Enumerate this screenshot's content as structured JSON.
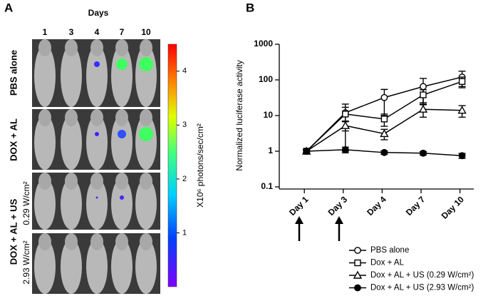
{
  "panel_a": {
    "label": "A",
    "days_title": "Days",
    "days": [
      "1",
      "3",
      "4",
      "7",
      "10"
    ],
    "rows": [
      "PBS alone",
      "DOX + AL",
      "DOX + AL + US",
      "0.29 W/cm²",
      "2.93 W/cm²"
    ],
    "colorbar": {
      "label": "X10⁶ photons/sec/cm²",
      "ticks": [
        1,
        2,
        3,
        4
      ],
      "lim": [
        0,
        4.5
      ]
    }
  },
  "chart_data": {
    "type": "line",
    "panel_label": "B",
    "y_label": "Normalized luciferase activity",
    "categories": [
      "Day 1",
      "Day 3",
      "Day 4",
      "Day 7",
      "Day 10"
    ],
    "ylim": [
      0.1,
      1000
    ],
    "yticks": [
      0.1,
      1,
      10,
      100,
      1000
    ],
    "log_y": true,
    "series": [
      {
        "name": "PBS alone",
        "color": "#000000",
        "marker": "circle-open",
        "values": [
          1,
          12,
          32,
          65,
          120
        ],
        "errors": [
          0.1,
          5,
          22,
          45,
          55
        ]
      },
      {
        "name": "Dox + AL",
        "color": "#000000",
        "marker": "square-open",
        "values": [
          1,
          11,
          8,
          38,
          90
        ],
        "errors": [
          0.1,
          10,
          3,
          15,
          30
        ]
      },
      {
        "name": "Dox + AL + US (0.29 W/cm²)",
        "color": "#000000",
        "marker": "triangle-open",
        "values": [
          1,
          5.2,
          3.1,
          15,
          14
        ],
        "errors": [
          0.1,
          1.5,
          1,
          6,
          5
        ]
      },
      {
        "name": "Dox + AL + US (2.93 W/cm²)",
        "color": "#000000",
        "marker": "circle-filled",
        "values": [
          1,
          1.1,
          0.92,
          0.88,
          0.75
        ],
        "errors": [
          0.1,
          0.2,
          0.1,
          0.1,
          0.12
        ]
      }
    ]
  }
}
